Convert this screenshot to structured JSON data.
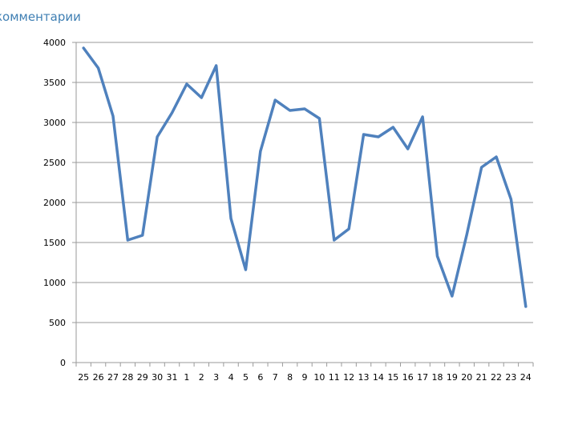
{
  "chart_data": {
    "type": "line",
    "title": "комментарии",
    "xlabel": "",
    "ylabel": "",
    "ylim": [
      0,
      4000
    ],
    "yticks": [
      0,
      500,
      1000,
      1500,
      2000,
      2500,
      3000,
      3500,
      4000
    ],
    "grid": true,
    "categories": [
      "25",
      "26",
      "27",
      "28",
      "29",
      "30",
      "31",
      "1",
      "2",
      "3",
      "4",
      "5",
      "6",
      "7",
      "8",
      "9",
      "10",
      "11",
      "12",
      "13",
      "14",
      "15",
      "16",
      "17",
      "18",
      "19",
      "20",
      "21",
      "22",
      "23",
      "24"
    ],
    "series": [
      {
        "color": "#4f81bd",
        "values": [
          3930,
          3680,
          3080,
          1530,
          1590,
          2820,
          3120,
          3480,
          3310,
          3710,
          1800,
          1160,
          2640,
          3280,
          3150,
          3170,
          3050,
          1530,
          1670,
          2850,
          2820,
          2940,
          2670,
          3070,
          1330,
          830,
          1600,
          2440,
          2570,
          2040,
          700
        ]
      }
    ]
  },
  "colors": {
    "line": "#4f81bd",
    "grid": "#9a9a9a",
    "title": "#3f7fb3"
  }
}
